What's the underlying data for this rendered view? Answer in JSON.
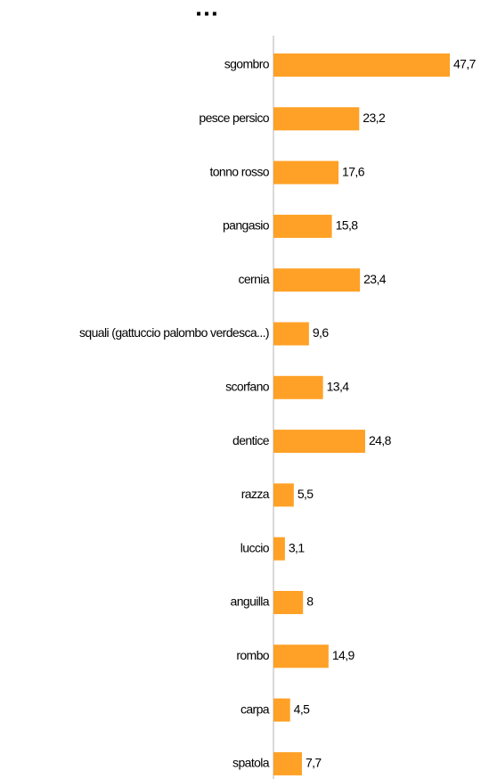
{
  "chart_data": {
    "type": "bar",
    "orientation": "horizontal",
    "title": "…",
    "categories": [
      "sgombro",
      "pesce persico",
      "tonno rosso",
      "pangasio",
      "cernia",
      "squali (gattuccio palombo verdesca...)",
      "scorfano",
      "dentice",
      "razza",
      "luccio",
      "anguilla",
      "rombo",
      "carpa",
      "spatola"
    ],
    "values": [
      47.7,
      23.2,
      17.6,
      15.8,
      23.4,
      9.6,
      13.4,
      24.8,
      5.5,
      3.1,
      8,
      14.9,
      4.5,
      7.7
    ],
    "value_labels": [
      "47,7",
      "23,2",
      "17,6",
      "15,8",
      "23,4",
      "9,6",
      "13,4",
      "24,8",
      "5,5",
      "3,1",
      "8",
      "14,9",
      "4,5",
      "7,7"
    ],
    "color": "#ffa126"
  }
}
